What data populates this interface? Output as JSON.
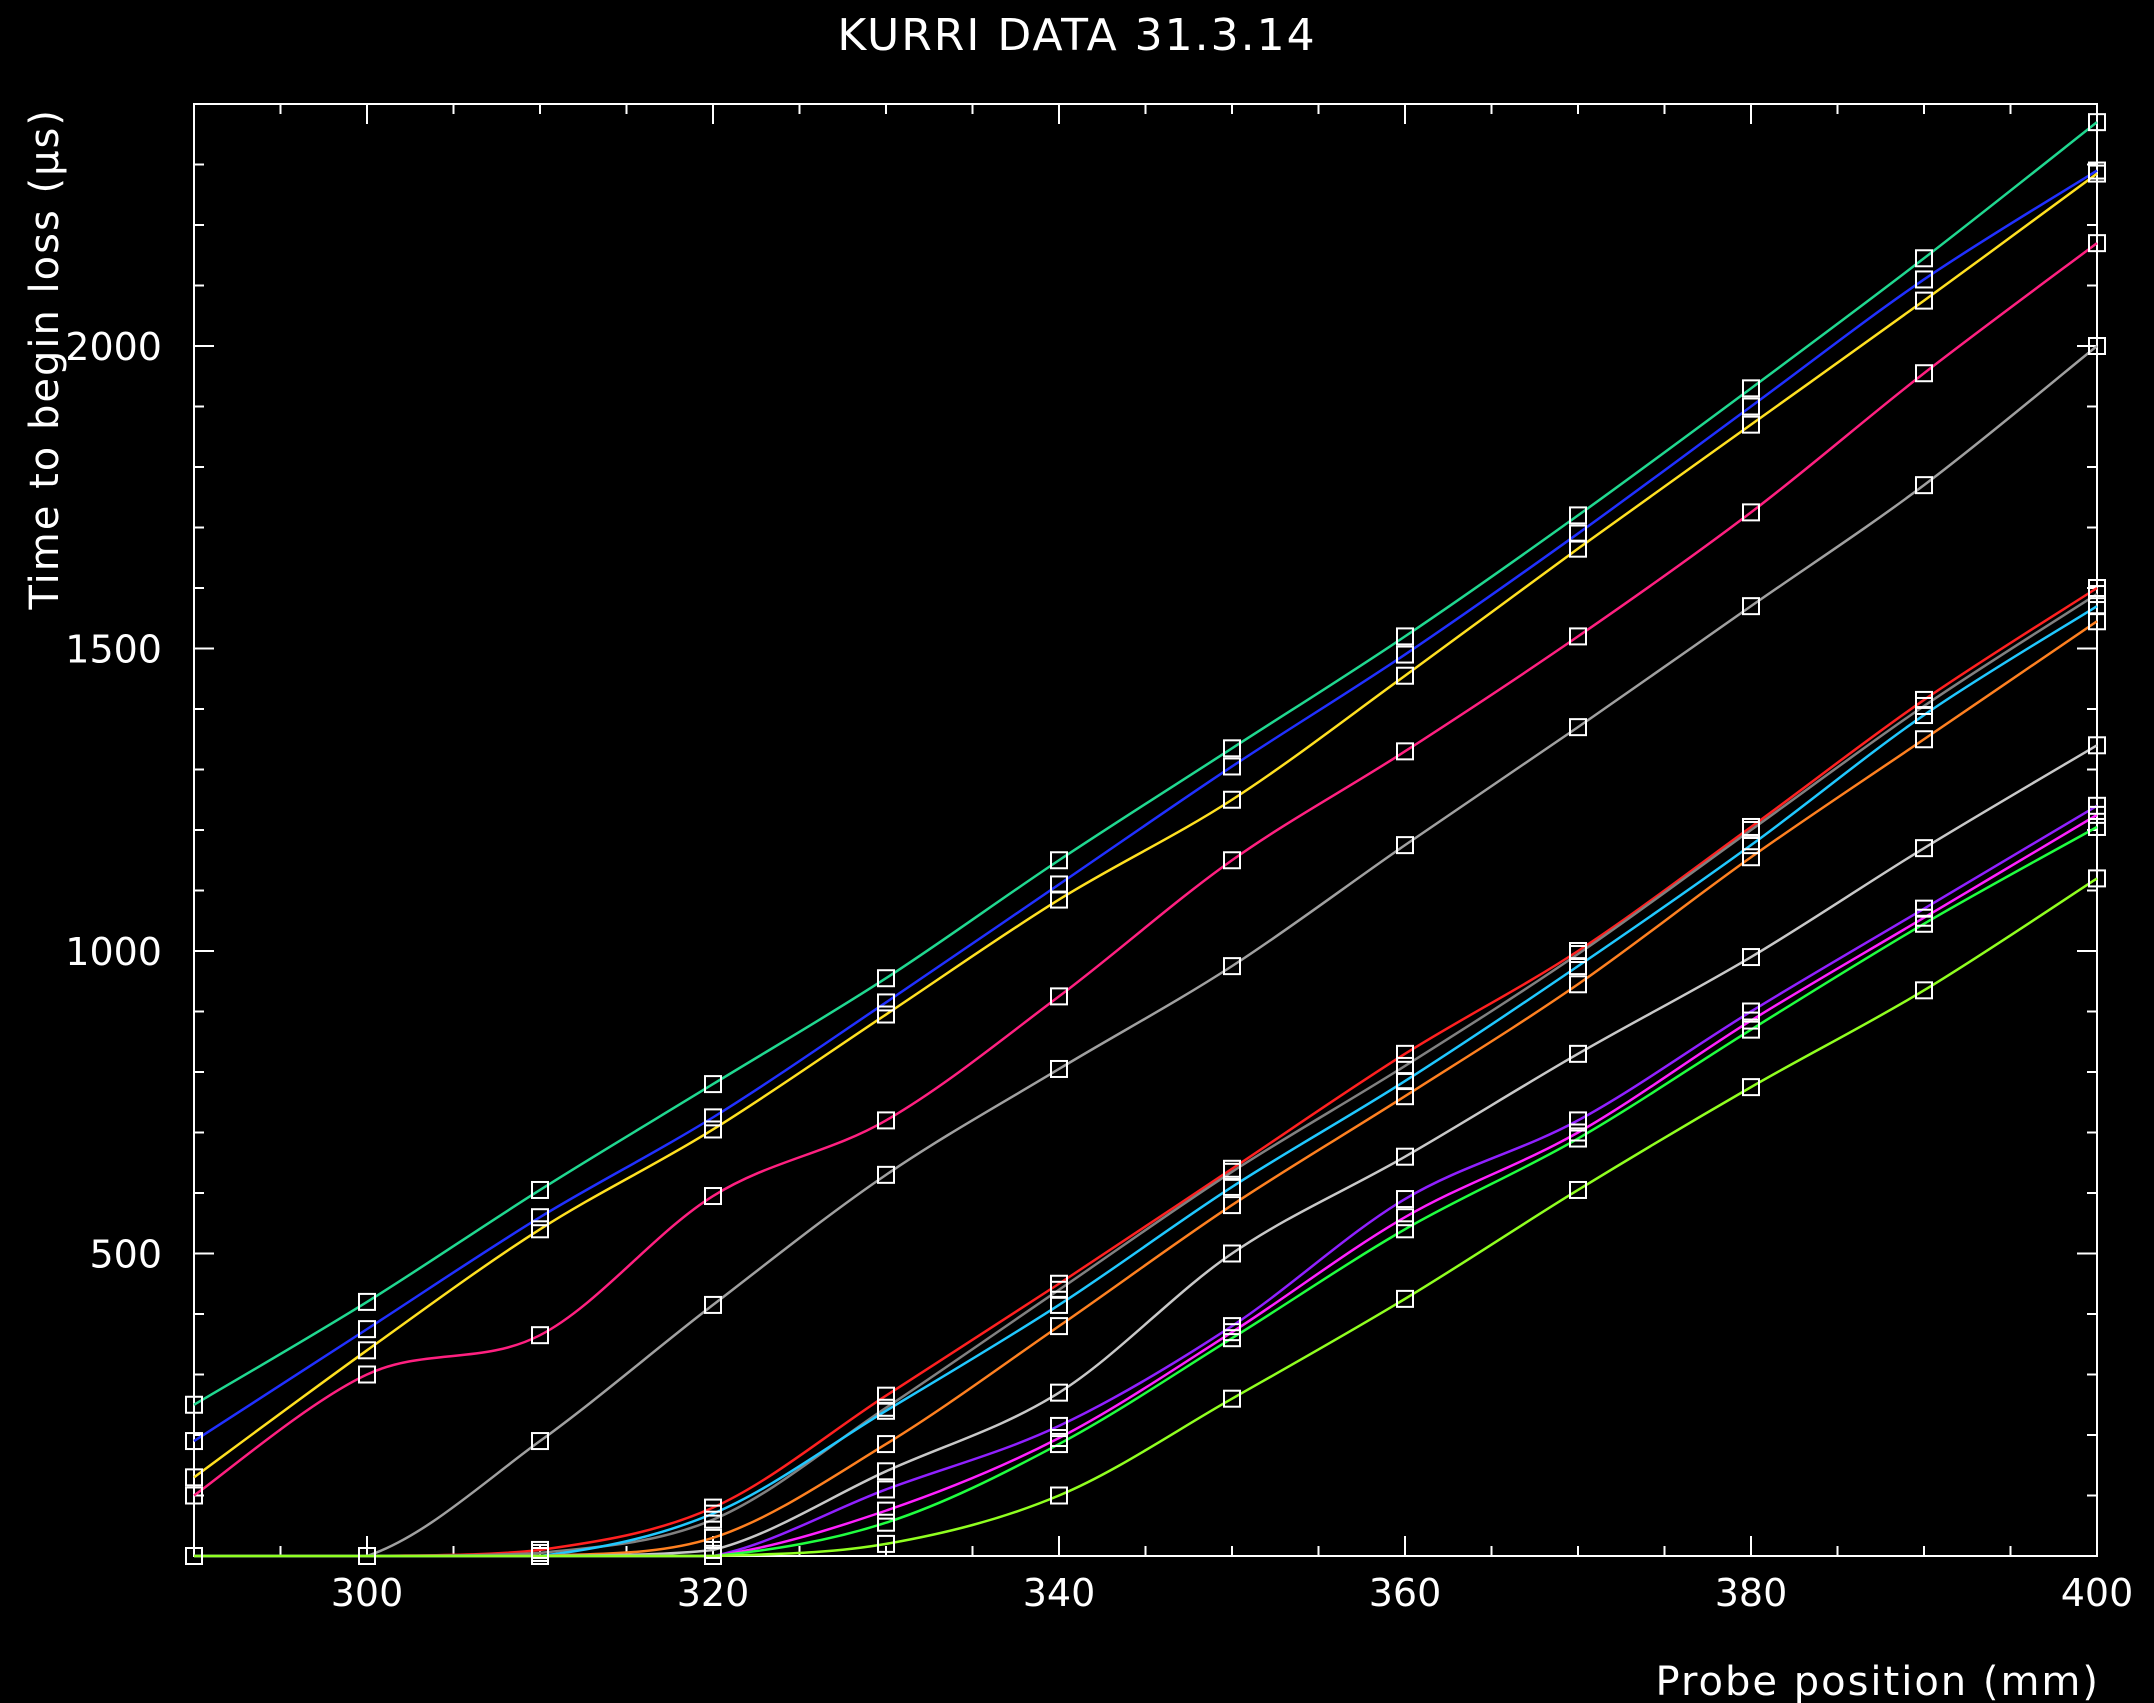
{
  "chart_data": {
    "type": "line",
    "title": "KURRI DATA 31.3.14",
    "xlabel": "Probe position (mm)",
    "ylabel": "Time to begin loss (μs)",
    "xlim": [
      290,
      400
    ],
    "ylim": [
      0,
      2400
    ],
    "xticks": [
      300,
      320,
      340,
      360,
      380,
      400
    ],
    "yticks": [
      500,
      1000,
      1500,
      2000
    ],
    "grid": false,
    "legend": "none",
    "background": "#000000",
    "axis_color": "#ffffff",
    "marker": "open-square",
    "marker_color": "#ffffff",
    "x": [
      290,
      300,
      310,
      320,
      330,
      340,
      350,
      360,
      370,
      380,
      390,
      400
    ],
    "series": [
      {
        "color": "#20d890",
        "values": [
          250,
          420,
          605,
          780,
          955,
          1150,
          1335,
          1520,
          1720,
          1930,
          2145,
          2370
        ]
      },
      {
        "color": "#2030ff",
        "values": [
          190,
          375,
          560,
          725,
          915,
          1110,
          1305,
          1490,
          1690,
          1900,
          2110,
          2290
        ]
      },
      {
        "color": "#ffe020",
        "values": [
          130,
          340,
          540,
          705,
          895,
          1085,
          1250,
          1455,
          1665,
          1870,
          2075,
          2285
        ]
      },
      {
        "color": "#ff2080",
        "values": [
          100,
          300,
          365,
          595,
          720,
          925,
          1150,
          1330,
          1520,
          1725,
          1955,
          2170
        ]
      },
      {
        "color": "#a0a0a0",
        "values": [
          0,
          0,
          190,
          415,
          630,
          805,
          975,
          1175,
          1370,
          1570,
          1770,
          2000
        ]
      },
      {
        "color": "#ff2020",
        "values": [
          0,
          0,
          10,
          80,
          265,
          450,
          640,
          830,
          1000,
          1205,
          1415,
          1600
        ]
      },
      {
        "color": "#808080",
        "values": [
          0,
          0,
          5,
          60,
          245,
          440,
          635,
          810,
          995,
          1200,
          1405,
          1590
        ]
      },
      {
        "color": "#20c8ff",
        "values": [
          0,
          0,
          0,
          70,
          240,
          415,
          610,
          785,
          975,
          1175,
          1390,
          1570
        ]
      },
      {
        "color": "#ff8020",
        "values": [
          0,
          0,
          0,
          30,
          185,
          380,
          580,
          760,
          945,
          1155,
          1350,
          1545
        ]
      },
      {
        "color": "#c8c8c8",
        "values": [
          0,
          0,
          0,
          10,
          140,
          270,
          500,
          660,
          830,
          990,
          1170,
          1340
        ]
      },
      {
        "color": "#9020ff",
        "values": [
          0,
          0,
          0,
          0,
          110,
          215,
          380,
          590,
          720,
          900,
          1070,
          1240
        ]
      },
      {
        "color": "#ff20ff",
        "values": [
          0,
          0,
          0,
          0,
          75,
          195,
          370,
          560,
          700,
          885,
          1055,
          1225
        ]
      },
      {
        "color": "#20ff40",
        "values": [
          0,
          0,
          0,
          0,
          55,
          185,
          360,
          540,
          690,
          870,
          1045,
          1205
        ]
      },
      {
        "color": "#90ff20",
        "values": [
          0,
          0,
          0,
          0,
          20,
          100,
          260,
          425,
          605,
          775,
          935,
          1120
        ]
      }
    ]
  }
}
